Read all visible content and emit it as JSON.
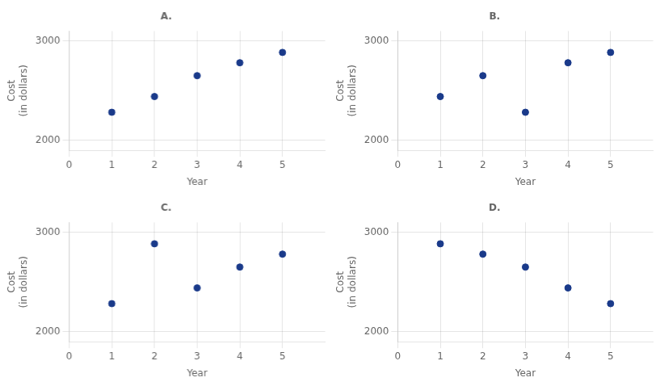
{
  "chart_data": [
    {
      "type": "scatter",
      "title": "A.",
      "x_label": "Year",
      "y_label": "Cost\n(in dollars)",
      "x": [
        1,
        2,
        3,
        4,
        5
      ],
      "values": [
        2283,
        2441,
        2651,
        2781,
        2885
      ],
      "color": "#1a3a8a",
      "xlim": [
        0,
        6
      ],
      "xticks": [
        0,
        1,
        2,
        3,
        4,
        5
      ],
      "ylim": [
        1900,
        3100
      ],
      "yticks": [
        2000,
        3000
      ],
      "grid": true
    },
    {
      "type": "scatter",
      "title": "B.",
      "x_label": "Year",
      "y_label": "Cost\n(in dollars)",
      "x": [
        1,
        2,
        3,
        4,
        5
      ],
      "values": [
        2441,
        2651,
        2283,
        2781,
        2885
      ],
      "color": "#1a3a8a",
      "xlim": [
        0,
        6
      ],
      "xticks": [
        0,
        1,
        2,
        3,
        4,
        5
      ],
      "ylim": [
        1900,
        3100
      ],
      "yticks": [
        2000,
        3000
      ],
      "grid": true
    },
    {
      "type": "scatter",
      "title": "C.",
      "x_label": "Year",
      "y_label": "Cost\n(in dollars)",
      "x": [
        1,
        2,
        3,
        4,
        5
      ],
      "values": [
        2283,
        2885,
        2441,
        2651,
        2781
      ],
      "color": "#1a3a8a",
      "xlim": [
        0,
        6
      ],
      "xticks": [
        0,
        1,
        2,
        3,
        4,
        5
      ],
      "ylim": [
        1900,
        3100
      ],
      "yticks": [
        2000,
        3000
      ],
      "grid": true
    },
    {
      "type": "scatter",
      "title": "D.",
      "x_label": "Year",
      "y_label": "Cost\n(in dollars)",
      "x": [
        1,
        2,
        3,
        4,
        5
      ],
      "values": [
        2885,
        2781,
        2651,
        2441,
        2283
      ],
      "color": "#1a3a8a",
      "xlim": [
        0,
        6
      ],
      "xticks": [
        0,
        1,
        2,
        3,
        4,
        5
      ],
      "ylim": [
        1900,
        3100
      ],
      "yticks": [
        2000,
        3000
      ],
      "grid": true
    }
  ]
}
